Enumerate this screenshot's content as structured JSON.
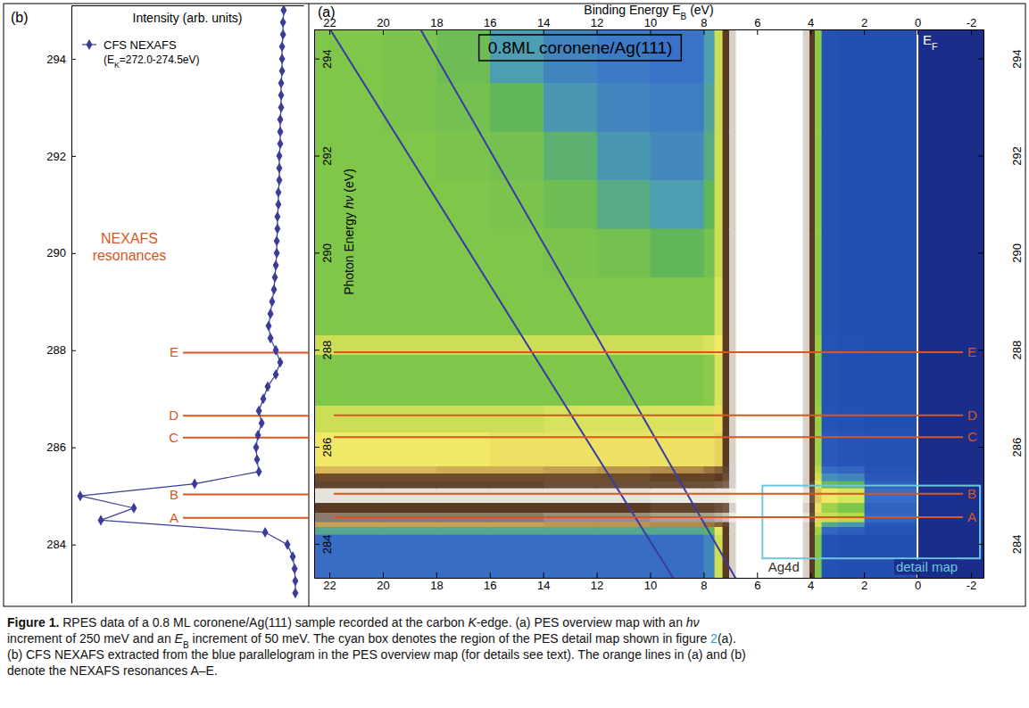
{
  "chart_data": [
    {
      "type": "heatmap",
      "panel": "(a)",
      "title": "0.8ML coronene/Ag(111)",
      "x_label": [
        {
          "text": "Binding Energy "
        },
        {
          "text": "E"
        },
        {
          "text": "B",
          "sub": true
        },
        {
          "text": " (eV)"
        }
      ],
      "y_label": [
        {
          "text": "Photon Energy "
        },
        {
          "text": "hν",
          "italic": true
        },
        {
          "text": " (eV)"
        }
      ],
      "xlim": [
        22.57,
        -2.47
      ],
      "xticks": [
        22,
        20,
        18,
        16,
        14,
        12,
        10,
        8,
        6,
        4,
        2,
        0,
        -2
      ],
      "ylim": [
        283.3,
        294.6
      ],
      "yticks": [
        284,
        286,
        288,
        290,
        292,
        294
      ],
      "x_edges": [
        -2.47,
        0,
        2,
        3,
        3.6,
        3.85,
        4.05,
        4.3,
        6.8,
        7.05,
        7.3,
        7.6,
        8,
        10,
        12,
        14,
        16,
        18,
        20,
        22.57
      ],
      "y_edges": [
        283.3,
        284.2,
        284.35,
        284.45,
        284.65,
        284.85,
        285.15,
        285.3,
        285.45,
        285.6,
        286.3,
        286.85,
        287.9,
        288.3,
        289.5,
        290.5,
        291.5,
        292.5,
        293.5,
        294.6
      ],
      "cells": [
        [
          5,
          16,
          16,
          17,
          55,
          84,
          95,
          100,
          95,
          84,
          62,
          35,
          28,
          28,
          28,
          28,
          28,
          28,
          28
        ],
        [
          5,
          18,
          22,
          25,
          58,
          84,
          95,
          100,
          95,
          84,
          64,
          50,
          45,
          45,
          45,
          45,
          45,
          45,
          45
        ],
        [
          5,
          20,
          40,
          45,
          62,
          84,
          95,
          100,
          95,
          85,
          80,
          78,
          76,
          75,
          75,
          74,
          74,
          74,
          74
        ],
        [
          6,
          26,
          60,
          62,
          68,
          86,
          96,
          100,
          97,
          94,
          93,
          92,
          92,
          91,
          91,
          90,
          90,
          90,
          90
        ],
        [
          6,
          24,
          55,
          58,
          66,
          85,
          95,
          100,
          95,
          87,
          86,
          85,
          85,
          84,
          84,
          84,
          84,
          84,
          84
        ],
        [
          6,
          28,
          63,
          65,
          70,
          87,
          96,
          100,
          98,
          97,
          97,
          97,
          97,
          96,
          96,
          96,
          96,
          96,
          96
        ],
        [
          6,
          24,
          50,
          52,
          64,
          85,
          95,
          100,
          95,
          88,
          87,
          86,
          86,
          86,
          86,
          85,
          85,
          85,
          85
        ],
        [
          5,
          20,
          35,
          38,
          62,
          84,
          95,
          100,
          95,
          86,
          84,
          83,
          83,
          82,
          82,
          82,
          82,
          82,
          82
        ],
        [
          5,
          18,
          25,
          28,
          60,
          84,
          95,
          100,
          95,
          85,
          80,
          78,
          76,
          75,
          74,
          73,
          73,
          72,
          72
        ],
        [
          5,
          17,
          18,
          20,
          58,
          84,
          95,
          100,
          95,
          84,
          68,
          66,
          66,
          66,
          66,
          66,
          65,
          65,
          65
        ],
        [
          5,
          16,
          17,
          18,
          57,
          84,
          95,
          100,
          95,
          84,
          66,
          63,
          63,
          63,
          63,
          62,
          62,
          62,
          62
        ],
        [
          5,
          16,
          16,
          17,
          56,
          84,
          95,
          100,
          95,
          84,
          63,
          56,
          55,
          55,
          55,
          55,
          55,
          55,
          55
        ],
        [
          5,
          16,
          17,
          18,
          57,
          84,
          95,
          100,
          95,
          84,
          65,
          63,
          62,
          62,
          62,
          62,
          62,
          62,
          62
        ],
        [
          5,
          16,
          16,
          17,
          56,
          84,
          95,
          100,
          95,
          84,
          63,
          55,
          55,
          55,
          55,
          55,
          55,
          55,
          55
        ],
        [
          5,
          16,
          16,
          17,
          56,
          84,
          95,
          100,
          95,
          84,
          62,
          53,
          50,
          53,
          54,
          55,
          55,
          55,
          55
        ],
        [
          5,
          16,
          16,
          17,
          56,
          84,
          95,
          100,
          95,
          84,
          62,
          50,
          42,
          46,
          52,
          54,
          55,
          55,
          55
        ],
        [
          5,
          16,
          16,
          17,
          56,
          84,
          95,
          100,
          95,
          84,
          62,
          46,
          36,
          40,
          48,
          53,
          54,
          55,
          55
        ],
        [
          5,
          16,
          16,
          17,
          56,
          84,
          95,
          100,
          95,
          84,
          62,
          44,
          33,
          35,
          40,
          50,
          53,
          54,
          55
        ],
        [
          5,
          16,
          16,
          17,
          56,
          84,
          95,
          100,
          95,
          84,
          62,
          42,
          30,
          32,
          35,
          42,
          52,
          54,
          55
        ]
      ],
      "color_range": [
        0,
        100
      ],
      "fermi_level": {
        "value": 0,
        "label": [
          {
            "text": "E"
          },
          {
            "text": "F",
            "sub": true
          }
        ]
      },
      "resonances": [
        {
          "label": "A",
          "value": 284.55
        },
        {
          "label": "B",
          "value": 285.03
        },
        {
          "label": "C",
          "value": 286.2
        },
        {
          "label": "D",
          "value": 286.65
        },
        {
          "label": "E",
          "value": 287.95
        }
      ],
      "cfs_window": {
        "x": [
          22.2,
          18.8,
          6.5,
          8.8
        ],
        "y": [
          294.8,
          294.8,
          283.0,
          283.0
        ],
        "color": "#3a3aa6"
      },
      "detail_box": {
        "x": [
          5.8,
          -2.34
        ],
        "y": [
          283.7,
          285.2
        ],
        "color": "#6cc7dc"
      },
      "annotations": [
        {
          "text": "Ag4d",
          "x": 5.0,
          "y": 283.42,
          "color": "#3d2b1f"
        },
        {
          "text": "detail map",
          "x": -0.35,
          "y": 283.42,
          "color": "#6cc7dc"
        }
      ]
    },
    {
      "type": "line",
      "panel": "(b)",
      "x_label": "Intensity (arb. units)",
      "xlim": [
        0,
        100
      ],
      "ylim": [
        282.8,
        295.1
      ],
      "yticks": [
        284,
        286,
        288,
        290,
        292,
        294
      ],
      "tick_labels": "y",
      "legend": "upper left",
      "series": [
        {
          "name": "CFS NEXAFS",
          "legend_note": [
            {
              "text": "(E"
            },
            {
              "text": "K",
              "sub": true
            },
            {
              "text": "=272.0-274.5eV)"
            }
          ],
          "color": "#3b3c98",
          "marker": "diamond",
          "line_style": "solid",
          "x": [
            96.5,
            96.5,
            96.2,
            95.4,
            93.1,
            83.5,
            12.7,
            26.9,
            3.8,
            53.1,
            80.8,
            80.0,
            79.6,
            80.4,
            82.0,
            80.8,
            82.7,
            84.6,
            88.1,
            90.0,
            88.1,
            85.8,
            85.0,
            85.8,
            86.5,
            87.3,
            87.7,
            88.1,
            88.5,
            88.5,
            88.8,
            88.8,
            89.2,
            89.2,
            89.6,
            89.6,
            89.6,
            90.0,
            90.0,
            90.0,
            90.4,
            90.4,
            90.4,
            90.8,
            90.8,
            90.8,
            91.2,
            91.2,
            91.5
          ],
          "y": [
            283,
            283.25,
            283.5,
            283.75,
            284,
            284.25,
            284.5,
            284.75,
            285,
            285.25,
            285.5,
            285.75,
            286,
            286.25,
            286.5,
            286.75,
            287,
            287.25,
            287.5,
            287.75,
            288,
            288.25,
            288.5,
            288.75,
            289,
            289.25,
            289.5,
            289.75,
            290,
            290.25,
            290.5,
            290.75,
            291,
            291.25,
            291.5,
            291.75,
            292,
            292.25,
            292.5,
            292.75,
            293,
            293.25,
            293.5,
            293.75,
            294,
            294.25,
            294.5,
            294.75,
            295
          ]
        }
      ],
      "resonances": [
        {
          "label": "A",
          "value": 284.55
        },
        {
          "label": "B",
          "value": 285.03
        },
        {
          "label": "C",
          "value": 286.2
        },
        {
          "label": "D",
          "value": 286.65
        },
        {
          "label": "E",
          "value": 287.95
        }
      ],
      "annotations": [
        {
          "text": "NEXAFS resonances",
          "x": 25,
          "y": 290.2,
          "color": "#d9561f"
        }
      ]
    }
  ],
  "caption": [
    [
      {
        "text": "Figure 1.",
        "bold": true
      },
      {
        "text": " RPES data of a 0.8 ML coronene/Ag(111) sample recorded at the carbon "
      },
      {
        "text": "K",
        "italic": true
      },
      {
        "text": "-edge. (a) PES overview map with an "
      },
      {
        "text": "hν",
        "italic": true
      }
    ],
    [
      {
        "text": "increment of 250 meV and an "
      },
      {
        "text": "E",
        "italic": true
      },
      {
        "text": "B",
        "sub": true
      },
      {
        "text": " increment of 50 meV. The cyan box denotes the region of the PES detail map shown in figure "
      },
      {
        "text": "2",
        "link": true
      },
      {
        "text": "(a)."
      }
    ],
    [
      {
        "text": "(b) CFS NEXAFS extracted from the blue parallelogram in the PES overview map (for details see text). The orange lines in (a) and (b)"
      }
    ],
    [
      {
        "text": "denote the NEXAFS resonances A–E."
      }
    ]
  ]
}
